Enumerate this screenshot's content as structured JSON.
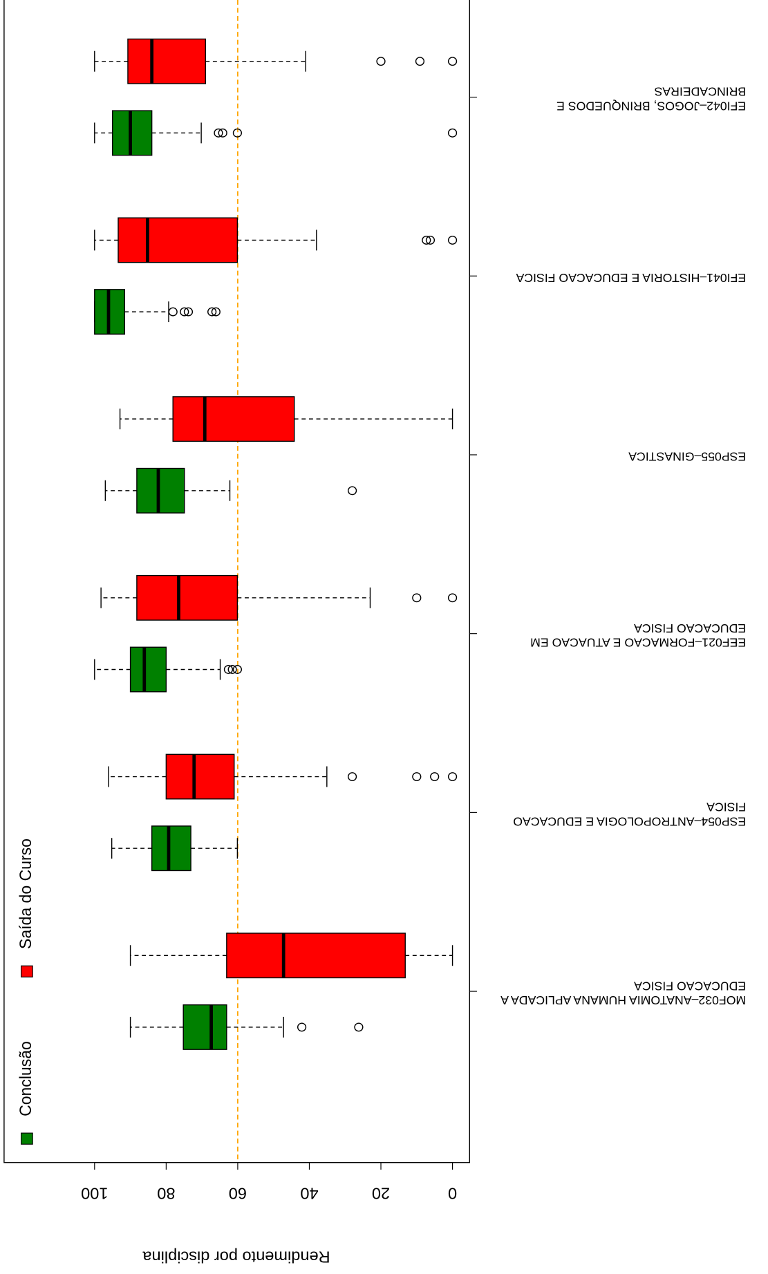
{
  "chart_data": {
    "type": "boxplot",
    "ylabel": "Rendimento por disciplina",
    "ylim": [
      0,
      100
    ],
    "yticks": [
      0,
      20,
      40,
      60,
      80,
      100
    ],
    "reference_line": 60,
    "reference_color": "#ffa500",
    "categories": [
      [
        "MOF032–ANATOMIA HUMANA APLICADA A",
        "EDUCACAO FISICA"
      ],
      [
        "ESP054–ANTROPOLOGIA E EDUCACAO",
        "FISICA"
      ],
      [
        "EEF021–FORMACAO E ATUACAO EM",
        "EDUCACAO FISICA"
      ],
      [
        "ESP055–GINASTICA"
      ],
      [
        "EFI041–HISTORIA E EDUCACAO FISICA"
      ],
      [
        "EFI042–JOGOS, BRINQUEDOS E",
        "BRINCADEIRAS"
      ]
    ],
    "series": [
      {
        "name": "Conclusão",
        "color": "#008000",
        "boxes": [
          {
            "whislo": 47.2,
            "q1": 63.1,
            "med": 67.4,
            "q3": 75.2,
            "whishi": 90,
            "fliers": [
              42.1,
              26.2
            ]
          },
          {
            "whislo": 60.1,
            "q1": 73.1,
            "med": 79.3,
            "q3": 84,
            "whishi": 95.2,
            "fliers": []
          },
          {
            "whislo": 64.9,
            "q1": 80,
            "med": 86.1,
            "q3": 90,
            "whishi": 100,
            "fliers": [
              62.6,
              61.5,
              60.1
            ]
          },
          {
            "whislo": 62.2,
            "q1": 74.9,
            "med": 82.2,
            "q3": 88.2,
            "whishi": 97,
            "fliers": [
              28
            ]
          },
          {
            "whislo": 79.3,
            "q1": 91.6,
            "med": 96.1,
            "q3": 100,
            "whishi": 100,
            "fliers": [
              78.1,
              74.9,
              73.8,
              67.2,
              66.1
            ]
          },
          {
            "whislo": 70.2,
            "q1": 84,
            "med": 90,
            "q3": 95,
            "whishi": 100,
            "fliers": [
              65.4,
              64.2,
              60.1,
              0
            ]
          }
        ]
      },
      {
        "name": "Saída do Curso",
        "color": "#ff0000",
        "boxes": [
          {
            "whislo": 0,
            "q1": 13.2,
            "med": 47.2,
            "q3": 63.1,
            "whishi": 90,
            "fliers": []
          },
          {
            "whislo": 35.1,
            "q1": 61,
            "med": 72.2,
            "q3": 80,
            "whishi": 96.1,
            "fliers": [
              28,
              10,
              5,
              0
            ]
          },
          {
            "whislo": 23,
            "q1": 60.1,
            "med": 76.5,
            "q3": 88.2,
            "whishi": 98.2,
            "fliers": [
              10,
              0
            ]
          },
          {
            "whislo": 0,
            "q1": 44.2,
            "med": 69.2,
            "q3": 78.1,
            "whishi": 92.9,
            "fliers": []
          },
          {
            "whislo": 38,
            "q1": 60.1,
            "med": 85.2,
            "q3": 93.4,
            "whishi": 100,
            "fliers": [
              7.3,
              6.2,
              0
            ]
          },
          {
            "whislo": 41,
            "q1": 69,
            "med": 84,
            "q3": 90.7,
            "whishi": 100,
            "fliers": [
              20,
              9.1,
              0
            ]
          }
        ]
      }
    ]
  }
}
